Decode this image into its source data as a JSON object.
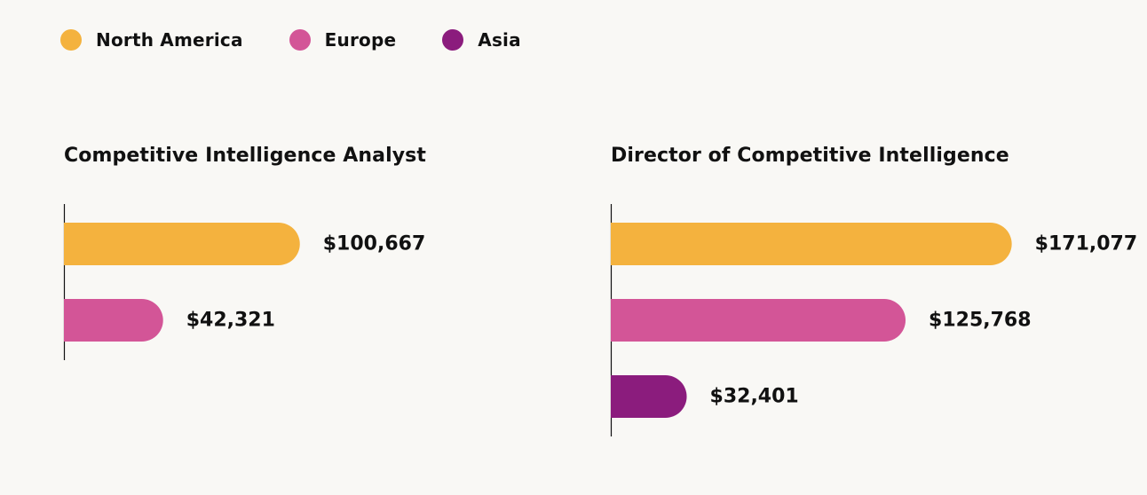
{
  "legend": {
    "items": [
      {
        "label": "North America",
        "color": "#f4b23e"
      },
      {
        "label": "Europe",
        "color": "#d35597"
      },
      {
        "label": "Asia",
        "color": "#8b1c7d"
      }
    ]
  },
  "chart_data": [
    {
      "type": "bar",
      "orientation": "horizontal",
      "title": "Competitive Intelligence Analyst",
      "categories": [
        "North America",
        "Europe"
      ],
      "values": [
        100667,
        42321
      ],
      "value_labels": [
        "$100,667",
        "$42,321"
      ],
      "colors": [
        "#f4b23e",
        "#d35597"
      ],
      "xlim": [
        0,
        200000
      ],
      "grid": false
    },
    {
      "type": "bar",
      "orientation": "horizontal",
      "title": "Director of Competitive Intelligence",
      "categories": [
        "North America",
        "Europe",
        "Asia"
      ],
      "values": [
        171077,
        125768,
        32401
      ],
      "value_labels": [
        "$171,077",
        "$125,768",
        "$32,401"
      ],
      "colors": [
        "#f4b23e",
        "#d35597",
        "#8b1c7d"
      ],
      "xlim": [
        0,
        200000
      ],
      "grid": false
    }
  ]
}
